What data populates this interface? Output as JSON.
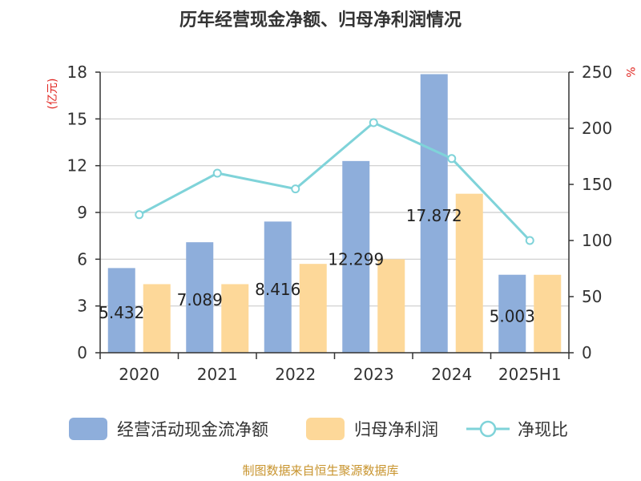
{
  "chart_data": {
    "type": "bar",
    "title": "历年经营现金净额、归母净利润情况",
    "categories": [
      "2020",
      "2021",
      "2022",
      "2023",
      "2024",
      "2025H1"
    ],
    "left_axis": {
      "unit_label": "(亿元)",
      "ylim": [
        0,
        18
      ],
      "ticks": [
        "0",
        "3",
        "6",
        "9",
        "12",
        "15",
        "18"
      ]
    },
    "right_axis": {
      "unit_label": "%",
      "ylim": [
        0,
        250
      ],
      "ticks": [
        "0",
        "50",
        "100",
        "150",
        "200",
        "250"
      ]
    },
    "series": [
      {
        "name": "经营活动现金流净额",
        "type": "bar",
        "axis": "left",
        "color": "#8eaedb",
        "values": [
          5.432,
          7.089,
          8.416,
          12.299,
          17.872,
          5.003
        ],
        "labels": [
          "5.432",
          "7.089",
          "8.416",
          "12.299",
          "17.872",
          "5.003"
        ]
      },
      {
        "name": "归母净利润",
        "type": "bar",
        "axis": "left",
        "color": "#fdd899",
        "values": [
          4.4,
          4.4,
          5.7,
          6.0,
          10.2,
          5.0
        ]
      },
      {
        "name": "净现比",
        "type": "line",
        "axis": "right",
        "color": "#7fd3d9",
        "values": [
          123,
          160,
          146,
          205,
          173,
          100
        ]
      }
    ],
    "grid": true,
    "legend_position": "bottom"
  },
  "footer": {
    "source": "制图数据来自恒生聚源数据库"
  }
}
